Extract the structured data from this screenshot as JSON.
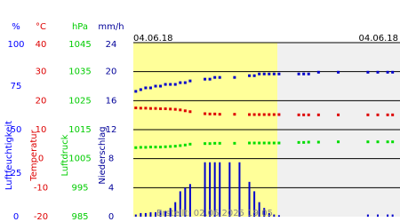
{
  "header": {
    "date_left": "04.06.18",
    "date_right": "04.06.18",
    "footer": "Erstellt: 02.06.2025 19:05"
  },
  "chart_data": [
    {
      "type": "scatter",
      "unit": "%",
      "axis_label": "Luftfeuchtigkeit",
      "color": "#0000cc",
      "ylim": [
        0,
        100
      ],
      "yticks": [
        100,
        75,
        50,
        25,
        0
      ],
      "values": [
        72,
        73,
        74,
        74,
        75,
        75,
        76,
        76,
        76,
        77,
        77,
        78,
        null,
        null,
        79,
        79,
        80,
        80,
        null,
        null,
        80,
        null,
        null,
        81,
        81,
        82,
        82,
        82,
        82,
        82,
        null,
        null,
        null,
        82,
        82,
        82,
        null,
        83,
        null,
        null,
        null,
        83,
        null,
        null,
        null,
        null,
        null,
        83,
        null,
        83,
        null,
        83,
        83,
        null
      ]
    },
    {
      "type": "scatter",
      "unit": "°C",
      "axis_label": "Temperatur",
      "color": "#dd0000",
      "ylim": [
        -20,
        40
      ],
      "yticks": [
        40,
        30,
        20,
        10,
        0,
        -10,
        -20
      ],
      "values": [
        17.5,
        17.4,
        17.4,
        17.3,
        17.3,
        17.2,
        17.2,
        17.1,
        17.0,
        16.8,
        16.5,
        16.2,
        null,
        null,
        15.5,
        15.4,
        15.4,
        15.3,
        null,
        null,
        15.3,
        null,
        null,
        15.2,
        15.2,
        15.2,
        15.2,
        15.2,
        15.2,
        15.2,
        null,
        null,
        null,
        15.1,
        15.1,
        15.1,
        null,
        15.1,
        null,
        null,
        null,
        15.1,
        null,
        null,
        null,
        null,
        null,
        15.1,
        null,
        15.1,
        null,
        15.1,
        15.1,
        null
      ]
    },
    {
      "type": "scatter",
      "unit": "hPa",
      "axis_label": "Luftdruck",
      "color": "#00dd00",
      "ylim": [
        985,
        1045
      ],
      "yticks": [
        1045,
        1035,
        1025,
        1015,
        1005,
        995,
        985
      ],
      "values": [
        1008.8,
        1008.9,
        1008.9,
        1009,
        1009,
        1009,
        1009.1,
        1009.2,
        1009.3,
        1009.5,
        1009.7,
        1010,
        null,
        null,
        1010.2,
        1010.2,
        1010.3,
        1010.3,
        null,
        null,
        1010.3,
        null,
        null,
        1010.4,
        1010.4,
        1010.4,
        1010.4,
        1010.4,
        1010.4,
        1010.4,
        null,
        null,
        null,
        1010.6,
        1010.6,
        1010.7,
        null,
        1010.7,
        null,
        null,
        null,
        1010.8,
        null,
        null,
        null,
        null,
        null,
        1010.8,
        null,
        1010.8,
        null,
        1010.8,
        1010.8,
        null
      ]
    },
    {
      "type": "bar",
      "unit": "mm/h",
      "axis_label": "Niederschlag",
      "color": "#0000cc",
      "grid": true,
      "ylim": [
        0,
        24
      ],
      "yticks": [
        24,
        20,
        16,
        12,
        8,
        4,
        0
      ],
      "values": [
        0.3,
        0.5,
        0.5,
        0.6,
        0.6,
        0.8,
        0.8,
        1.2,
        2,
        3.5,
        4,
        4.5,
        0,
        0,
        7.5,
        7.5,
        7.5,
        7.5,
        0,
        7.5,
        0,
        7.5,
        0,
        4.8,
        3.5,
        2,
        1.2,
        0.5,
        0.3,
        0.2,
        null,
        null,
        null,
        null,
        null,
        null,
        null,
        null,
        null,
        null,
        null,
        null,
        null,
        null,
        null,
        null,
        null,
        0.3,
        null,
        0.3,
        null,
        0.3,
        0.3,
        null
      ]
    }
  ]
}
